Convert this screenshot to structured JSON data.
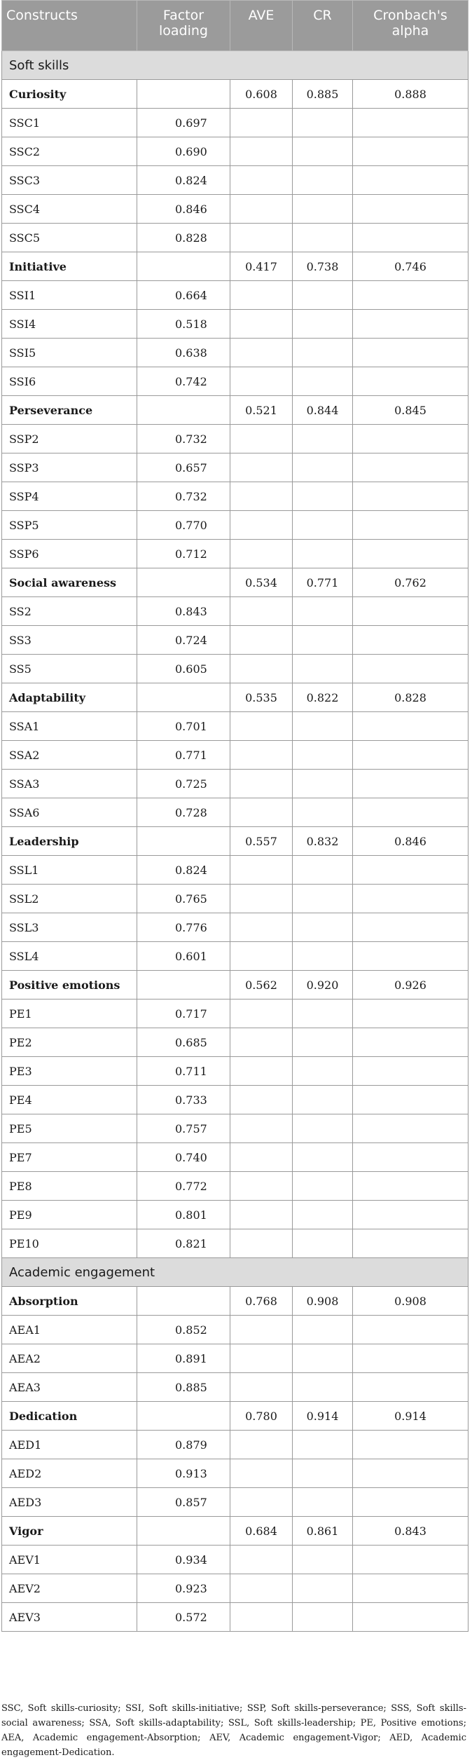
{
  "header": {
    "constructs": "Constructs",
    "factor_loading": "Factor loading",
    "ave": "AVE",
    "cr": "CR",
    "cronbach": "Cronbach's alpha"
  },
  "sections": [
    {
      "title": "Soft skills",
      "groups": [
        {
          "name": "Curiosity",
          "ave": "0.608",
          "cr": "0.885",
          "alpha": "0.888",
          "items": [
            [
              "SSC1",
              "0.697"
            ],
            [
              "SSC2",
              "0.690"
            ],
            [
              "SSC3",
              "0.824"
            ],
            [
              "SSC4",
              "0.846"
            ],
            [
              "SSC5",
              "0.828"
            ]
          ]
        },
        {
          "name": "Initiative",
          "ave": "0.417",
          "cr": "0.738",
          "alpha": "0.746",
          "items": [
            [
              "SSI1",
              "0.664"
            ],
            [
              "SSI4",
              "0.518"
            ],
            [
              "SSI5",
              "0.638"
            ],
            [
              "SSI6",
              "0.742"
            ]
          ]
        },
        {
          "name": "Perseverance",
          "ave": "0.521",
          "cr": "0.844",
          "alpha": "0.845",
          "items": [
            [
              "SSP2",
              "0.732"
            ],
            [
              "SSP3",
              "0.657"
            ],
            [
              "SSP4",
              "0.732"
            ],
            [
              "SSP5",
              "0.770"
            ],
            [
              "SSP6",
              "0.712"
            ]
          ]
        },
        {
          "name": "Social awareness",
          "ave": "0.534",
          "cr": "0.771",
          "alpha": "0.762",
          "items": [
            [
              "SS2",
              "0.843"
            ],
            [
              "SS3",
              "0.724"
            ],
            [
              "SS5",
              "0.605"
            ]
          ]
        },
        {
          "name": "Adaptability",
          "ave": "0.535",
          "cr": "0.822",
          "alpha": "0.828",
          "items": [
            [
              "SSA1",
              "0.701"
            ],
            [
              "SSA2",
              "0.771"
            ],
            [
              "SSA3",
              "0.725"
            ],
            [
              "SSA6",
              "0.728"
            ]
          ]
        },
        {
          "name": "Leadership",
          "ave": "0.557",
          "cr": "0.832",
          "alpha": "0.846",
          "items": [
            [
              "SSL1",
              "0.824"
            ],
            [
              "SSL2",
              "0.765"
            ],
            [
              "SSL3",
              "0.776"
            ],
            [
              "SSL4",
              "0.601"
            ]
          ]
        },
        {
          "name": "Positive emotions",
          "ave": "0.562",
          "cr": "0.920",
          "alpha": "0.926",
          "items": [
            [
              "PE1",
              "0.717"
            ],
            [
              "PE2",
              "0.685"
            ],
            [
              "PE3",
              "0.711"
            ],
            [
              "PE4",
              "0.733"
            ],
            [
              "PE5",
              "0.757"
            ],
            [
              "PE7",
              "0.740"
            ],
            [
              "PE8",
              "0.772"
            ],
            [
              "PE9",
              "0.801"
            ],
            [
              "PE10",
              "0.821"
            ]
          ]
        }
      ]
    },
    {
      "title": "Academic engagement",
      "groups": [
        {
          "name": "Absorption",
          "ave": "0.768",
          "cr": "0.908",
          "alpha": "0.908",
          "items": [
            [
              "AEA1",
              "0.852"
            ],
            [
              "AEA2",
              "0.891"
            ],
            [
              "AEA3",
              "0.885"
            ]
          ]
        },
        {
          "name": "Dedication",
          "ave": "0.780",
          "cr": "0.914",
          "alpha": "0.914",
          "items": [
            [
              "AED1",
              "0.879"
            ],
            [
              "AED2",
              "0.913"
            ],
            [
              "AED3",
              "0.857"
            ]
          ]
        },
        {
          "name": "Vigor",
          "ave": "0.684",
          "cr": "0.861",
          "alpha": "0.843",
          "items": [
            [
              "AEV1",
              "0.934"
            ],
            [
              "AEV2",
              "0.923"
            ],
            [
              "AEV3",
              "0.572"
            ]
          ]
        }
      ]
    }
  ],
  "footnote": "SSC, Soft skills-curiosity; SSI, Soft skills-initiative; SSP, Soft skills-perseverance; SSS, Soft skills-social awareness; SSA, Soft skills-adaptability; SSL, Soft skills-leadership; PE, Positive emotions; AEA, Academic engagement-Absorption; AEV, Academic engagement-Vigor; AED, Academic engagement-Dedication."
}
